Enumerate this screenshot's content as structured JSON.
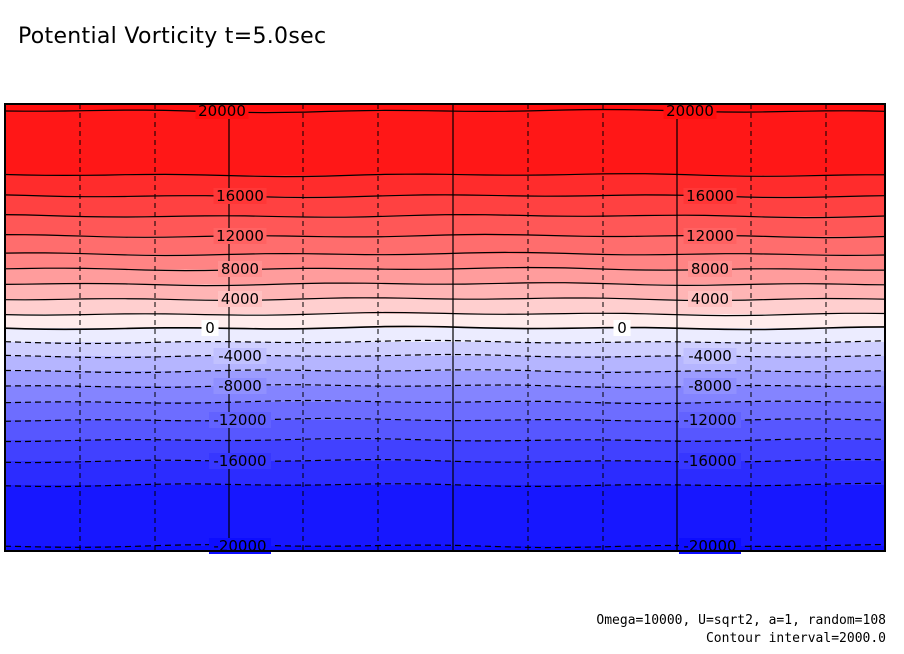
{
  "title": "Potential Vorticity t=5.0sec",
  "captions": {
    "params": "Omega=10000, U=sqrt2, a=1, random=108",
    "interval": "Contour interval=2000.0"
  },
  "chart_data": {
    "type": "contour",
    "title": "Potential Vorticity t=5.0sec",
    "variable": "Potential Vorticity",
    "time": "t=5.0sec",
    "contour_interval": 2000.0,
    "value_range": [
      -20000,
      20000
    ],
    "colormap": "blue-white-red (negative blue, zero white, positive red)",
    "colors": {
      "positive_max": "#ff0d0d",
      "zero": "#ffffff",
      "negative_max": "#0d0dff"
    },
    "negative_contours": "dashed",
    "grid": true,
    "contour_levels": [
      {
        "value": -20000,
        "labels": [
          "-20000",
          "-20000"
        ]
      },
      {
        "value": -18000,
        "labels": []
      },
      {
        "value": -16000,
        "labels": [
          "-16000",
          "-16000"
        ]
      },
      {
        "value": -14000,
        "labels": []
      },
      {
        "value": -12000,
        "labels": [
          "-12000",
          "-12000"
        ]
      },
      {
        "value": -10000,
        "labels": []
      },
      {
        "value": -8000,
        "labels": [
          "-8000",
          "-8000"
        ]
      },
      {
        "value": -6000,
        "labels": []
      },
      {
        "value": -4000,
        "labels": [
          "-4000",
          "-4000"
        ]
      },
      {
        "value": -2000,
        "labels": []
      },
      {
        "value": 0,
        "labels": [
          "0",
          "0"
        ]
      },
      {
        "value": 2000,
        "labels": []
      },
      {
        "value": 4000,
        "labels": [
          "4000",
          "4000"
        ]
      },
      {
        "value": 6000,
        "labels": []
      },
      {
        "value": 8000,
        "labels": [
          "8000",
          "8000"
        ]
      },
      {
        "value": 10000,
        "labels": []
      },
      {
        "value": 12000,
        "labels": [
          "12000",
          "12000"
        ]
      },
      {
        "value": 14000,
        "labels": []
      },
      {
        "value": 16000,
        "labels": [
          "16000",
          "16000"
        ]
      },
      {
        "value": 18000,
        "labels": []
      },
      {
        "value": 20000,
        "labels": [
          "20000",
          "20000"
        ]
      }
    ],
    "parameters": {
      "Omega": "10000",
      "U": "sqrt2",
      "a": "1",
      "random": "108"
    }
  }
}
